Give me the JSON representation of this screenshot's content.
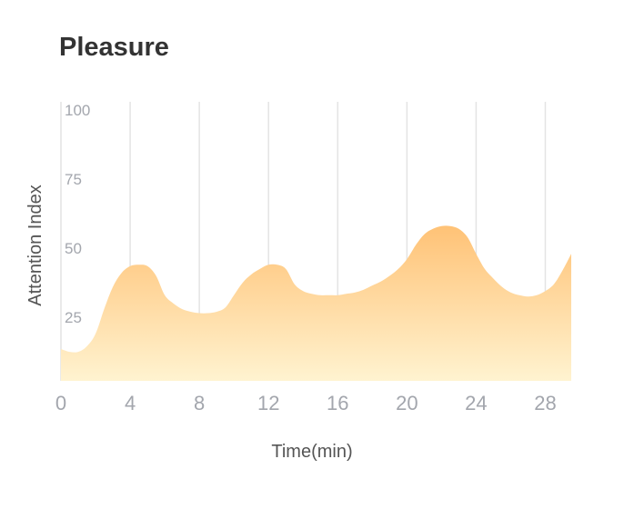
{
  "chart_data": {
    "type": "area",
    "title": "Pleasure",
    "xlabel": "Time(min)",
    "ylabel": "Attention Index",
    "xlim": [
      0,
      29.5
    ],
    "ylim": [
      0,
      100
    ],
    "x_ticks": [
      0,
      4,
      8,
      12,
      16,
      20,
      24,
      28
    ],
    "y_ticks": [
      25,
      50,
      75,
      100
    ],
    "grid": "vertical",
    "series": [
      {
        "x": [
          0,
          0.5,
          1,
          1.5,
          2,
          2.5,
          3,
          3.5,
          4,
          4.5,
          5,
          5.5,
          6,
          6.5,
          7,
          7.5,
          8,
          8.5,
          9,
          9.5,
          10,
          10.5,
          11,
          11.5,
          12,
          12.5,
          13,
          13.5,
          14,
          14.5,
          15,
          15.5,
          16,
          16.5,
          17,
          17.5,
          18,
          18.5,
          19,
          19.5,
          20,
          20.5,
          21,
          21.5,
          22,
          22.5,
          23,
          23.5,
          24,
          24.5,
          25,
          25.5,
          26,
          26.5,
          27,
          27.5,
          28,
          28.5,
          29,
          29.5
        ],
        "y": [
          11.5,
          10.5,
          10.5,
          12.5,
          17,
          26,
          34,
          39,
          41.5,
          42,
          41.5,
          38,
          31,
          28,
          26,
          25,
          24.5,
          24.5,
          25,
          26.5,
          31,
          35.5,
          38.5,
          40.5,
          42,
          42,
          40.5,
          35,
          32.5,
          31.5,
          31,
          31,
          31,
          31.5,
          32,
          33,
          34.5,
          36,
          38,
          40.5,
          44,
          49,
          53,
          55,
          56,
          56,
          55,
          52,
          46,
          40.5,
          37,
          34,
          32,
          31,
          30.5,
          31,
          32.5,
          35,
          40,
          46
        ]
      }
    ],
    "colors": {
      "area_top": "#ffc276",
      "area_bottom": "#fff3d0",
      "grid": "#e4e4e4",
      "tick": "#a3a6ad"
    }
  }
}
